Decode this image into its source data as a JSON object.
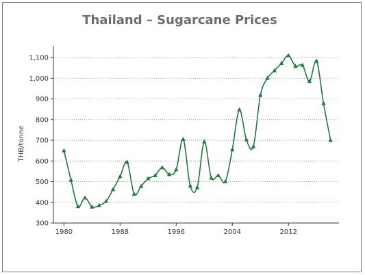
{
  "chart_data": {
    "type": "line",
    "title": "Thailand – Sugarcane Prices",
    "xlabel": "",
    "ylabel": "THB/tonne",
    "xlim": [
      1980,
      2017
    ],
    "ylim": [
      300,
      1150
    ],
    "y_ticks": [
      300,
      400,
      500,
      600,
      700,
      800,
      900,
      1000,
      1100
    ],
    "y_tick_labels": [
      "300",
      "400",
      "500",
      "600",
      "700",
      "800",
      "900",
      "1,000",
      "1,100"
    ],
    "x_ticks": [
      1980,
      1988,
      1996,
      2004,
      2012
    ],
    "x_tick_labels": [
      "1980",
      "1988",
      "1996",
      "2004",
      "2012"
    ],
    "grid": "horizontal dotted",
    "line_color": "#1e7a3c",
    "marker": "triangle",
    "series": [
      {
        "x": [
          1980,
          1981,
          1982,
          1983,
          1984,
          1985,
          1986,
          1987,
          1988,
          1989,
          1990,
          1991,
          1992,
          1993,
          1994,
          1995,
          1996,
          1997,
          1998,
          1999,
          2000,
          2001,
          2002,
          2003,
          2004,
          2005,
          2006,
          2007,
          2008,
          2009,
          2010,
          2011,
          2012,
          2013,
          2014,
          2015,
          2016,
          2017,
          2018
        ],
        "values": [
          650,
          508,
          380,
          422,
          378,
          385,
          405,
          462,
          525,
          595,
          440,
          478,
          515,
          530,
          568,
          535,
          558,
          705,
          480,
          472,
          693,
          518,
          530,
          500,
          655,
          848,
          703,
          670,
          918,
          1000,
          1037,
          1072,
          1110,
          1058,
          1063,
          985,
          1083,
          878,
          700
        ]
      }
    ]
  }
}
